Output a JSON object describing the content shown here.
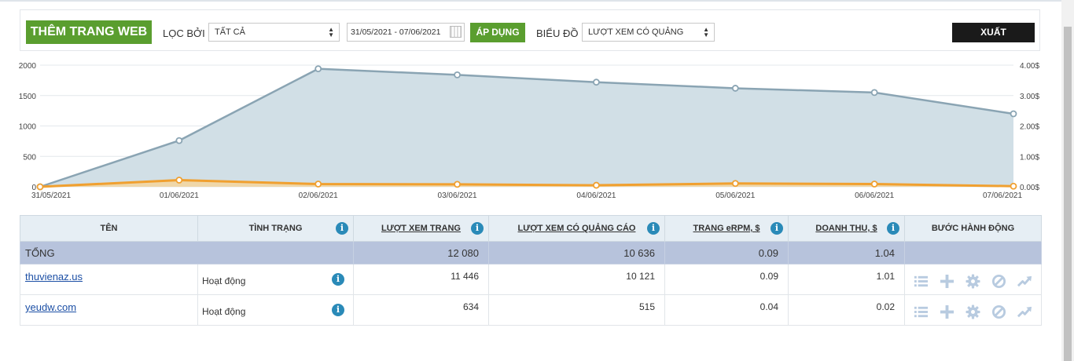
{
  "toolbar": {
    "add_site_label": "THÊM TRANG WEB",
    "filter_by_label": "LỌC BỞI",
    "filter_value": "TẤT CẢ",
    "date_range": "31/05/2021 - 07/06/2021",
    "apply_label": "ÁP DỤNG",
    "chart_label": "BIỂU ĐỒ",
    "chart_metric": "LƯỢT XEM CÓ QUẢNG",
    "export_label": "XUẤT"
  },
  "chart_data": {
    "type": "area",
    "x": [
      "31/05/2021",
      "01/06/2021",
      "02/06/2021",
      "03/06/2021",
      "04/06/2021",
      "05/06/2021",
      "06/06/2021",
      "07/06/2021"
    ],
    "y_left_ticks": [
      "2000",
      "1500",
      "1000",
      "500",
      "0"
    ],
    "y_right_ticks": [
      "4.00$",
      "3.00$",
      "2.00$",
      "1.00$",
      "0.00$"
    ],
    "ylim_left": [
      0,
      2000
    ],
    "ylim_right": [
      0,
      4
    ],
    "series": [
      {
        "axis": "left",
        "color": "#8aa4b3",
        "fill": "#d1dfe6",
        "values": [
          0,
          760,
          1940,
          1840,
          1720,
          1620,
          1550,
          1200
        ]
      },
      {
        "axis": "right",
        "color": "#f0a030",
        "fill": "#f6d49a",
        "values": [
          0,
          0.22,
          0.09,
          0.08,
          0.05,
          0.11,
          0.09,
          0.02
        ]
      }
    ],
    "grid": true
  },
  "table": {
    "headers": [
      "TÊN",
      "TÌNH TRẠNG",
      "LƯỢT XEM TRANG",
      "LƯỢT XEM CÓ QUẢNG CÁO",
      "TRANG eRPM, $",
      "DOANH THU, $",
      "BƯỚC HÀNH ĐỘNG"
    ],
    "total": {
      "label": "TỔNG",
      "page_views": "12 080",
      "ad_views": "10 636",
      "erpm": "0.09",
      "revenue": "1.04"
    },
    "rows": [
      {
        "name": "thuvienaz.us",
        "status": "Hoạt động",
        "page_views": "11 446",
        "ad_views": "10 121",
        "erpm": "0.09",
        "revenue": "1.01"
      },
      {
        "name": "yeudw.com",
        "status": "Hoạt động",
        "page_views": "634",
        "ad_views": "515",
        "erpm": "0.04",
        "revenue": "0.02"
      }
    ],
    "action_icons": [
      "list-icon",
      "plus-icon",
      "gear-icon",
      "block-icon",
      "trend-icon"
    ]
  }
}
